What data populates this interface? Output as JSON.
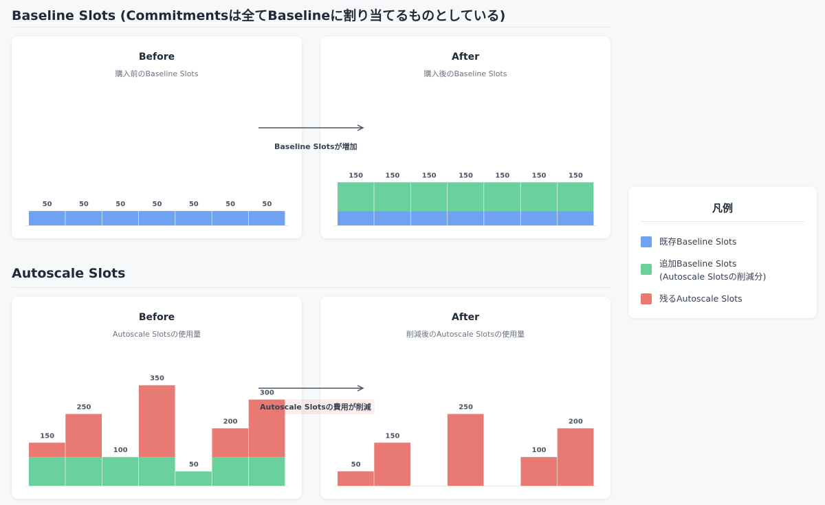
{
  "sections": {
    "baseline_title": "Baseline Slots (Commitmentsは全てBaselineに割り当てるものとしている)",
    "autoscale_title": "Autoscale Slots"
  },
  "colors": {
    "existing_baseline": "#6fa3f2",
    "added_baseline": "#6bd19c",
    "autoscale": "#e87973"
  },
  "arrows": {
    "baseline_label": "Baseline Slotsが増加",
    "autoscale_label": "Autoscale Slotsの費用が削減"
  },
  "legend": {
    "title": "凡例",
    "items": [
      {
        "line1": "既存Baseline Slots",
        "line2": ""
      },
      {
        "line1": "追加Baseline Slots",
        "line2": "(Autoscale Slotsの削減分)"
      },
      {
        "line1": "残るAutoscale Slots",
        "line2": ""
      }
    ]
  },
  "chart_data": [
    {
      "type": "bar",
      "panel": "baseline-before",
      "title": "Before",
      "subtitle": "購入前のBaseline Slots",
      "ylim": [
        0,
        350
      ],
      "series": [
        {
          "key": "existing_baseline",
          "values": [
            50,
            50,
            50,
            50,
            50,
            50,
            50
          ]
        }
      ],
      "labels": [
        50,
        50,
        50,
        50,
        50,
        50,
        50
      ]
    },
    {
      "type": "bar",
      "panel": "baseline-after",
      "title": "After",
      "subtitle": "購入後のBaseline Slots",
      "ylim": [
        0,
        350
      ],
      "series": [
        {
          "key": "existing_baseline",
          "values": [
            50,
            50,
            50,
            50,
            50,
            50,
            50
          ]
        },
        {
          "key": "added_baseline",
          "values": [
            100,
            100,
            100,
            100,
            100,
            100,
            100
          ]
        }
      ],
      "labels": [
        150,
        150,
        150,
        150,
        150,
        150,
        150
      ]
    },
    {
      "type": "bar",
      "panel": "autoscale-before",
      "title": "Before",
      "subtitle": "Autoscale Slotsの使用量",
      "ylim": [
        0,
        350
      ],
      "series": [
        {
          "key": "added_baseline",
          "values": [
            100,
            100,
            100,
            100,
            50,
            100,
            100
          ]
        },
        {
          "key": "autoscale",
          "values": [
            50,
            150,
            0,
            250,
            0,
            100,
            200
          ]
        }
      ],
      "labels": [
        150,
        250,
        100,
        350,
        50,
        200,
        300
      ]
    },
    {
      "type": "bar",
      "panel": "autoscale-after",
      "title": "After",
      "subtitle": "削減後のAutoscale Slotsの使用量",
      "ylim": [
        0,
        350
      ],
      "series": [
        {
          "key": "autoscale",
          "values": [
            50,
            150,
            0,
            250,
            0,
            100,
            200
          ]
        }
      ],
      "labels": [
        50,
        150,
        null,
        250,
        null,
        100,
        200
      ]
    }
  ]
}
